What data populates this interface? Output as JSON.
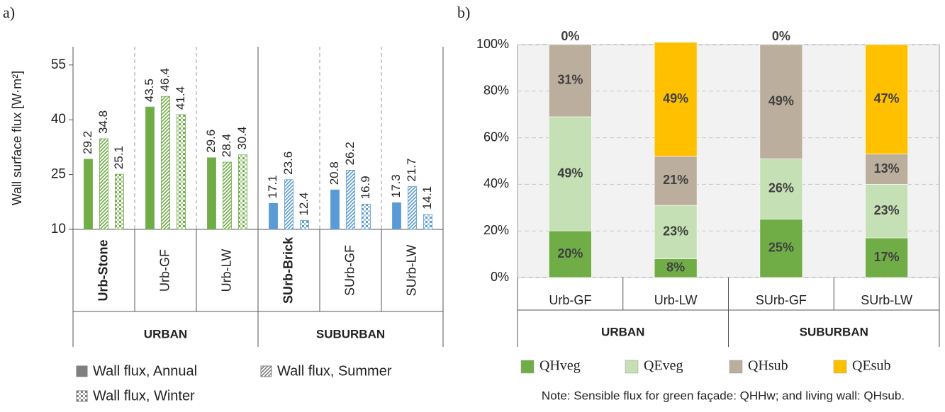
{
  "chart_data": [
    {
      "type": "bar",
      "panel": "a)",
      "ylabel": "Wall surface flux [W·m²]",
      "groups": [
        {
          "name": "URBAN",
          "color": "#70ad47",
          "categories": [
            "Urb-Stone",
            "Urb-GF",
            "Urb-LW"
          ]
        },
        {
          "name": "SUBURBAN",
          "color": "#5b9bd5",
          "categories": [
            "SUrb-Brick",
            "SUrb-GF",
            "SUrb-LW"
          ]
        }
      ],
      "series": [
        {
          "name": "Wall flux, Annual",
          "pattern": "solid",
          "color": "#7f7f7f",
          "values": [
            29.2,
            43.5,
            29.6,
            17.1,
            20.8,
            17.3
          ]
        },
        {
          "name": "Wall flux, Summer",
          "pattern": "stripes",
          "color": "#7f7f7f",
          "values": [
            34.8,
            46.4,
            28.4,
            23.6,
            26.2,
            21.7
          ]
        },
        {
          "name": "Wall flux, Winter",
          "pattern": "checks",
          "color": "#7f7f7f",
          "values": [
            25.1,
            41.4,
            30.4,
            12.4,
            16.9,
            14.1
          ]
        }
      ],
      "ylim": [
        10,
        60
      ],
      "yticks": [
        10,
        25,
        40,
        55
      ]
    },
    {
      "type": "stacked",
      "panel": "b)",
      "groups": [
        {
          "name": "URBAN",
          "categories": [
            "Urb-GF",
            "Urb-LW"
          ]
        },
        {
          "name": "SUBURBAN",
          "categories": [
            "SUrb-GF",
            "SUrb-LW"
          ]
        }
      ],
      "series": [
        {
          "name": "QHveg",
          "color": "#70ad47",
          "values": [
            20,
            8,
            25,
            17
          ],
          "value_labels": [
            "20%",
            "8%",
            "25%",
            "17%"
          ]
        },
        {
          "name": "QEveg",
          "color": "#c5e0b4",
          "values": [
            49,
            23,
            26,
            23
          ],
          "value_labels": [
            "49%",
            "23%",
            "26%",
            "23%"
          ]
        },
        {
          "name": "QHsub",
          "color": "#bcae9c",
          "values": [
            31,
            21,
            49,
            13
          ],
          "value_labels": [
            "31%",
            "21%",
            "49%",
            "13%"
          ]
        },
        {
          "name": "QEsub",
          "color": "#ffc000",
          "values": [
            0,
            49,
            0,
            47
          ],
          "value_labels": [
            "0%",
            "49%",
            "0%",
            "47%"
          ]
        }
      ],
      "ylim": [
        0,
        100
      ],
      "yticks": [
        {
          "value": 0,
          "label": "0%"
        },
        {
          "value": 20,
          "label": "20%"
        },
        {
          "value": 40,
          "label": "40%"
        },
        {
          "value": 60,
          "label": "60%"
        },
        {
          "value": 80,
          "label": "80%"
        },
        {
          "value": 100,
          "label": "100%"
        }
      ],
      "grid": true,
      "note": "Note: Sensible flux for green façade: QHHw; and living wall: QHsub."
    }
  ]
}
